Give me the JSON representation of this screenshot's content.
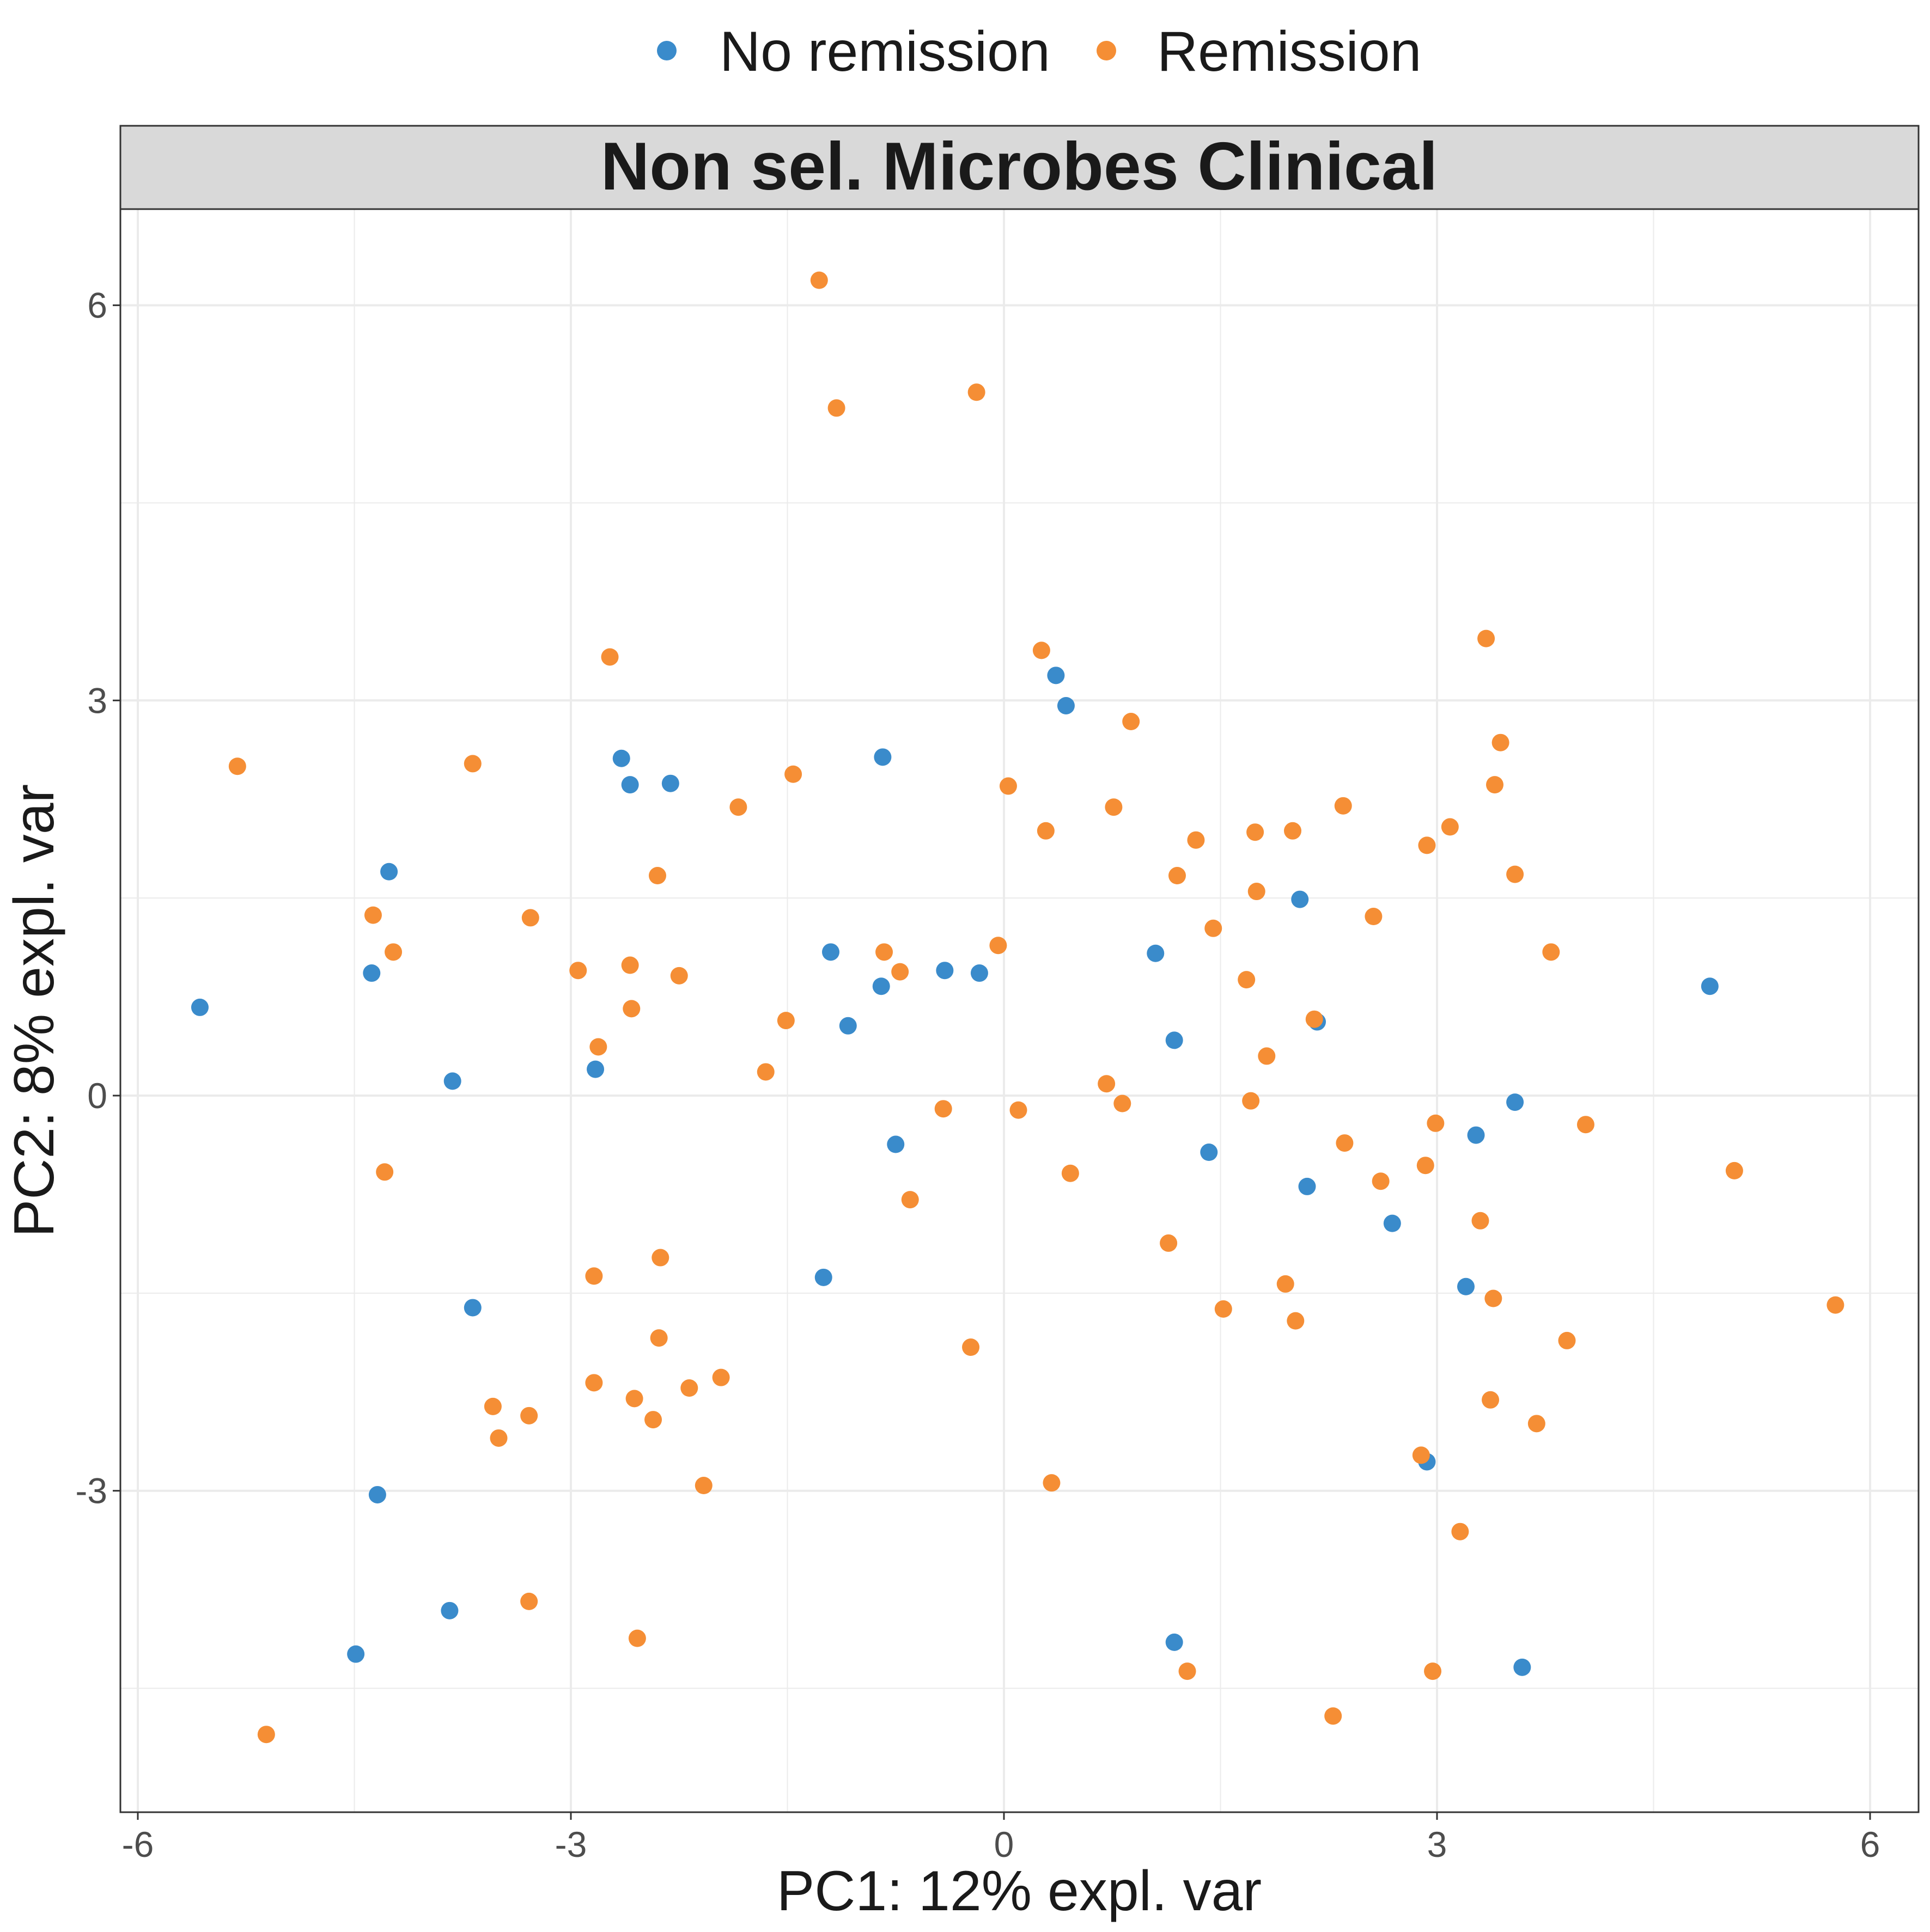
{
  "chart_data": {
    "type": "scatter",
    "facet_title": "Non sel. Microbes Clinical",
    "xlabel": "PC1: 12% expl. var",
    "ylabel": "PC2: 8% expl. var",
    "xlim": [
      -6.1,
      6.3
    ],
    "ylim": [
      -5.4,
      6.7
    ],
    "x_ticks": [
      -6,
      -3,
      0,
      3,
      6
    ],
    "x_tick_labels": [
      "-6",
      "-3",
      "0",
      "3",
      "6"
    ],
    "y_ticks": [
      -3,
      0,
      3,
      6
    ],
    "y_tick_labels": [
      "-3",
      "0",
      "3",
      "6"
    ],
    "grid": true,
    "legend_position": "top",
    "series": [
      {
        "name": "No remission",
        "color": "#3A8BCB",
        "points": [
          [
            -5.57,
            0.67
          ],
          [
            -4.26,
            1.7
          ],
          [
            -4.38,
            0.93
          ],
          [
            -3.82,
            0.11
          ],
          [
            -3.68,
            -1.61
          ],
          [
            -4.34,
            -3.03
          ],
          [
            -3.84,
            -3.91
          ],
          [
            -4.49,
            -4.24
          ],
          [
            -2.83,
            0.2
          ],
          [
            -2.65,
            2.56
          ],
          [
            -2.59,
            2.36
          ],
          [
            -2.31,
            2.37
          ],
          [
            -1.2,
            1.09
          ],
          [
            -1.08,
            0.53
          ],
          [
            -0.84,
            2.57
          ],
          [
            -0.85,
            0.83
          ],
          [
            -0.75,
            -0.37
          ],
          [
            -0.41,
            0.95
          ],
          [
            -0.17,
            0.93
          ],
          [
            -1.25,
            -1.38
          ],
          [
            0.36,
            3.19
          ],
          [
            0.43,
            2.96
          ],
          [
            1.05,
            1.08
          ],
          [
            1.18,
            0.42
          ],
          [
            1.42,
            -0.43
          ],
          [
            2.05,
            1.49
          ],
          [
            2.17,
            0.56
          ],
          [
            2.1,
            -0.69
          ],
          [
            2.69,
            -0.97
          ],
          [
            3.2,
            -1.45
          ],
          [
            3.27,
            -0.3
          ],
          [
            3.54,
            -0.05
          ],
          [
            2.93,
            -2.78
          ],
          [
            1.18,
            -4.15
          ],
          [
            3.59,
            -4.34
          ],
          [
            4.89,
            0.83
          ]
        ]
      },
      {
        "name": "Remission",
        "color": "#F58E35",
        "points": [
          [
            -5.31,
            2.5
          ],
          [
            -5.11,
            -4.85
          ],
          [
            -4.37,
            1.37
          ],
          [
            -4.23,
            1.09
          ],
          [
            -4.29,
            -0.58
          ],
          [
            -3.68,
            2.52
          ],
          [
            -3.28,
            1.35
          ],
          [
            -3.54,
            -2.36
          ],
          [
            -3.5,
            -2.6
          ],
          [
            -3.29,
            -2.43
          ],
          [
            -3.29,
            -3.84
          ],
          [
            -2.95,
            0.95
          ],
          [
            -2.81,
            0.37
          ],
          [
            -2.73,
            3.33
          ],
          [
            -2.84,
            -1.37
          ],
          [
            -2.84,
            -2.18
          ],
          [
            -2.59,
            0.99
          ],
          [
            -2.58,
            0.66
          ],
          [
            -2.56,
            -2.3
          ],
          [
            -2.54,
            -4.12
          ],
          [
            -2.43,
            -2.46
          ],
          [
            -2.4,
            1.67
          ],
          [
            -2.39,
            -1.84
          ],
          [
            -2.38,
            -1.23
          ],
          [
            -2.25,
            0.91
          ],
          [
            -2.18,
            -2.22
          ],
          [
            -2.08,
            -2.96
          ],
          [
            -1.96,
            -2.14
          ],
          [
            -1.84,
            2.19
          ],
          [
            -1.65,
            0.18
          ],
          [
            -1.51,
            0.57
          ],
          [
            -1.46,
            2.44
          ],
          [
            -1.28,
            6.19
          ],
          [
            -1.16,
            5.22
          ],
          [
            -0.83,
            1.09
          ],
          [
            -0.72,
            0.94
          ],
          [
            -0.65,
            -0.79
          ],
          [
            -0.42,
            -0.1
          ],
          [
            -0.23,
            -1.91
          ],
          [
            -0.19,
            5.34
          ],
          [
            -0.04,
            1.14
          ],
          [
            0.03,
            2.35
          ],
          [
            0.1,
            -0.11
          ],
          [
            0.26,
            3.38
          ],
          [
            0.29,
            2.01
          ],
          [
            0.33,
            -2.94
          ],
          [
            0.46,
            -0.59
          ],
          [
            0.71,
            0.09
          ],
          [
            0.76,
            2.19
          ],
          [
            0.82,
            -0.06
          ],
          [
            0.88,
            2.84
          ],
          [
            1.14,
            -1.12
          ],
          [
            1.2,
            1.67
          ],
          [
            1.27,
            -4.37
          ],
          [
            1.33,
            1.94
          ],
          [
            1.45,
            1.27
          ],
          [
            1.52,
            -1.62
          ],
          [
            1.68,
            0.88
          ],
          [
            1.71,
            -0.04
          ],
          [
            1.74,
            2.0
          ],
          [
            1.75,
            1.55
          ],
          [
            1.82,
            0.3
          ],
          [
            1.95,
            -1.43
          ],
          [
            2.0,
            2.01
          ],
          [
            2.02,
            -1.71
          ],
          [
            2.15,
            0.58
          ],
          [
            2.35,
            2.2
          ],
          [
            2.36,
            -0.36
          ],
          [
            2.28,
            -4.71
          ],
          [
            2.56,
            1.36
          ],
          [
            2.61,
            -0.65
          ],
          [
            2.89,
            -2.73
          ],
          [
            2.92,
            -0.53
          ],
          [
            2.93,
            1.9
          ],
          [
            2.97,
            -4.37
          ],
          [
            2.99,
            -0.21
          ],
          [
            3.09,
            2.04
          ],
          [
            3.16,
            -3.31
          ],
          [
            3.3,
            -0.95
          ],
          [
            3.34,
            3.47
          ],
          [
            3.37,
            -2.31
          ],
          [
            3.39,
            -1.54
          ],
          [
            3.4,
            2.36
          ],
          [
            3.44,
            2.68
          ],
          [
            3.54,
            1.68
          ],
          [
            3.69,
            -2.49
          ],
          [
            3.79,
            1.09
          ],
          [
            3.9,
            -1.86
          ],
          [
            4.03,
            -0.22
          ],
          [
            5.06,
            -0.57
          ],
          [
            5.76,
            -1.59
          ]
        ]
      }
    ]
  }
}
